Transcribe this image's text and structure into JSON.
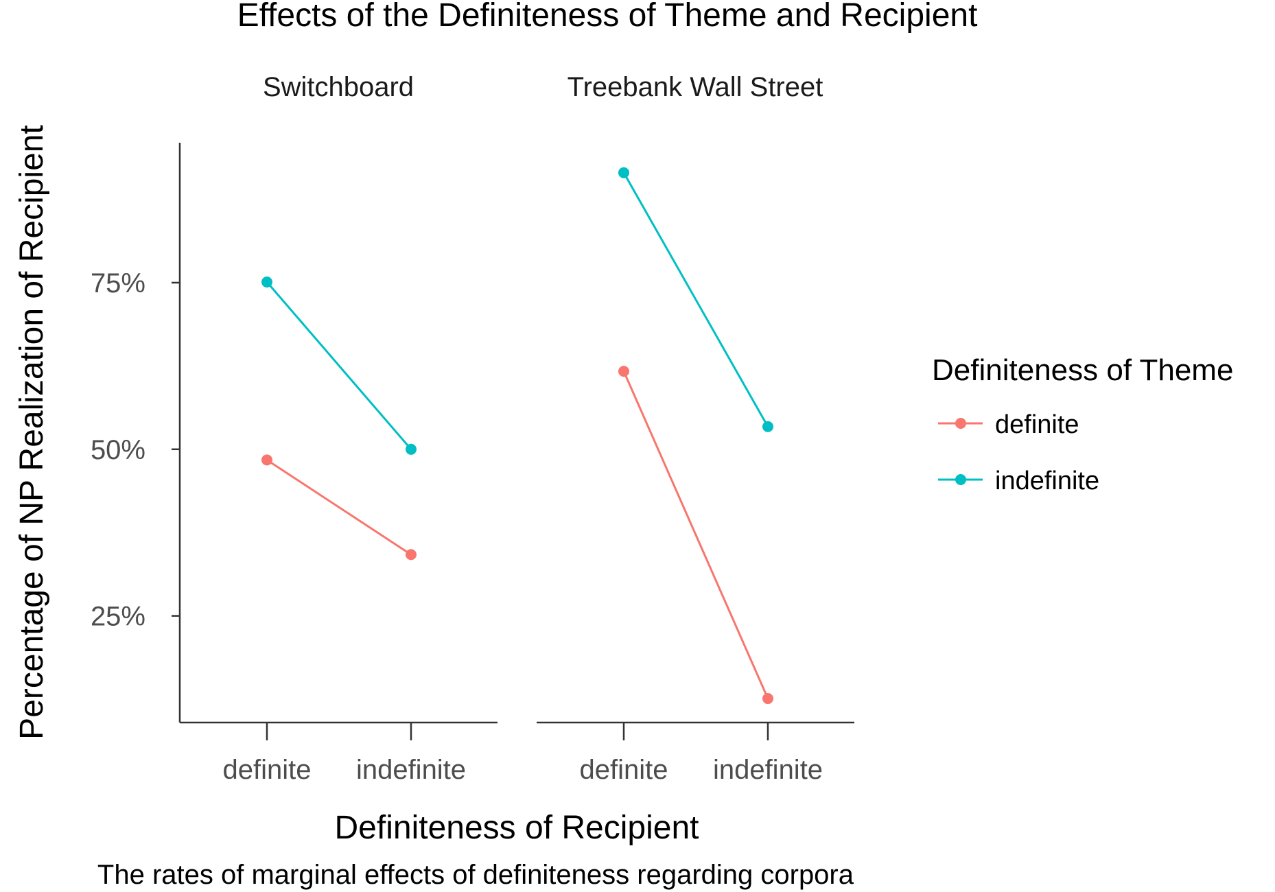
{
  "chart_data": {
    "type": "line",
    "title": "Effects of the Definiteness of Theme and Recipient",
    "caption": "The rates of marginal effects of definiteness regarding corpora",
    "xlabel": "Definiteness of Recipient",
    "ylabel": "Percentage of NP Realization of Recipient",
    "categories": [
      "definite",
      "indefinite"
    ],
    "ylim": [
      9,
      96
    ],
    "yticks": [
      {
        "value": 25,
        "label": "25%"
      },
      {
        "value": 50,
        "label": "50%"
      },
      {
        "value": 75,
        "label": "75%"
      }
    ],
    "grid": false,
    "legend": {
      "title": "Definiteness of Theme",
      "position": "right",
      "entries": [
        {
          "label": "definite",
          "color": "#F8766D"
        },
        {
          "label": "indefinite",
          "color": "#00BFC4"
        }
      ]
    },
    "panels": [
      {
        "title": "Switchboard",
        "series": [
          {
            "name": "definite",
            "color": "#F8766D",
            "values": [
              48.4,
              34.2
            ]
          },
          {
            "name": "indefinite",
            "color": "#00BFC4",
            "values": [
              75.1,
              50.0
            ]
          }
        ]
      },
      {
        "title": "Treebank Wall Street",
        "series": [
          {
            "name": "definite",
            "color": "#F8766D",
            "values": [
              61.7,
              12.6
            ]
          },
          {
            "name": "indefinite",
            "color": "#00BFC4",
            "values": [
              91.5,
              53.4
            ]
          }
        ]
      }
    ]
  }
}
